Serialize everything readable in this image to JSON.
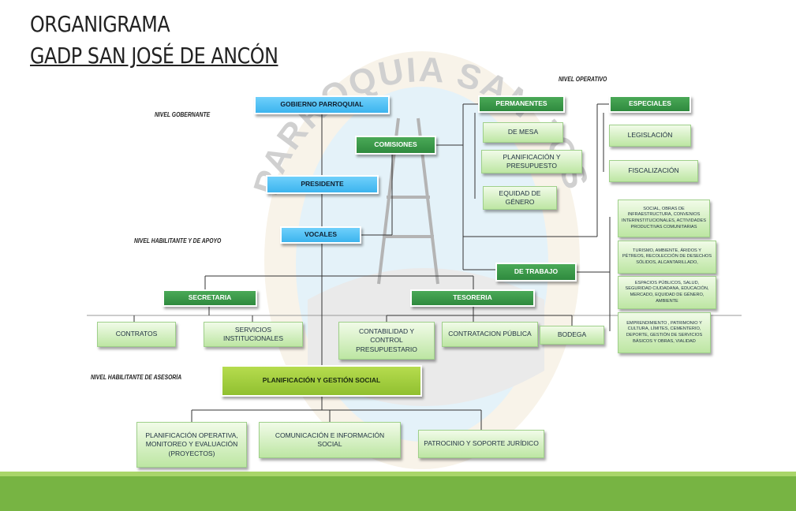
{
  "header": {
    "title": "ORGANIGRAMA",
    "subtitle": "GADP SAN JOSÉ DE ANCÓN"
  },
  "emblem_text": "PARROQUIA SAN JOSÉ DE ANCÓN",
  "levels": [
    "NIVEL GOBERNANTE",
    "NIVEL OPERATIVO",
    "NIVEL HABILITANTE Y DE APOYO",
    "NIVEL HABILITANTE DE ASESORÍA"
  ],
  "nodes": [
    {
      "label": "GOBIERNO PARROQUIAL"
    },
    {
      "label": "PRESIDENTE"
    },
    {
      "label": "VOCALES"
    },
    {
      "label": "COMISIONES"
    },
    {
      "label": "PERMANENTES"
    },
    {
      "label": "DE MESA"
    },
    {
      "label": "PLANIFICACIÓN Y PRESUPUESTO"
    },
    {
      "label": "EQUIDAD DE GÉNERO"
    },
    {
      "label": "ESPECIALES"
    },
    {
      "label": "LEGISLACIÓN"
    },
    {
      "label": "FISCALIZACIÓN"
    },
    {
      "label": "DE TRABAJO"
    },
    {
      "label": "SOCIAL, OBRAS DE INFRAESTRUCTURA, CONVENIOS INTERINSTITUCIONALES, ACTIVIDADES PRODUCTIVAS COMUNITARIAS"
    },
    {
      "label": "TURISMO, AMBIENTE, ÁRIDOS Y PÉTREOS, RECOLECCIÓN DE DESECHOS SÓLIDOS, ALCANTARILLADO,"
    },
    {
      "label": "ESPACIOS PÚBLICOS, SALUD, SEGURIDAD CIUDADANA, EDUCACIÓN, MERCADO, EQUIDAD DE GÉNERO, AMBIENTE"
    },
    {
      "label": "EMPRENDIMIENTO , PATRIMONIO Y CULTURA, LÍMITES, CEMENTERIO, DEPORTE, GESTIÓN DE SERVICIOS BÁSICOS Y OBRAS, VIALIDAD"
    },
    {
      "label": "SECRETARIA"
    },
    {
      "label": "TESORERIA"
    },
    {
      "label": "CONTRATOS"
    },
    {
      "label": "SERVICIOS INSTITUCIONALES"
    },
    {
      "label": "CONTABILIDAD Y CONTROL PRESUPUESTARIO"
    },
    {
      "label": "CONTRATACION PÚBLICA"
    },
    {
      "label": "BODEGA"
    },
    {
      "label": "PLANIFICACIÓN Y GESTIÓN SOCIAL"
    },
    {
      "label": "PLANIFICACIÓN OPERATIVA, MONITOREO Y EVALUACIÓN (PROYECTOS)"
    },
    {
      "label": "COMUNICACIÓN E INFORMACIÓN SOCIAL"
    },
    {
      "label": "PATROCINIO Y SOPORTE JURÍDICO"
    }
  ]
}
